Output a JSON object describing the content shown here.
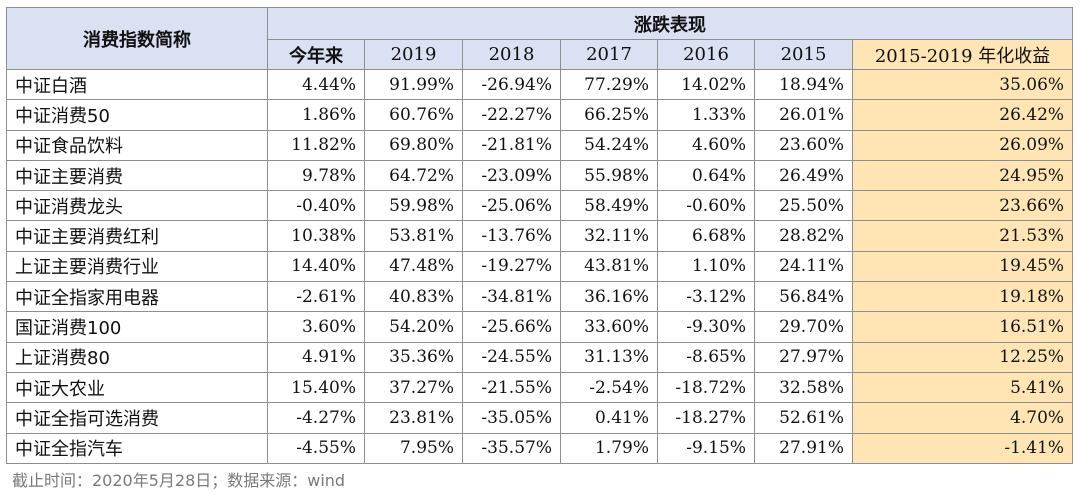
{
  "table": {
    "name_header": "消费指数简称",
    "group_header": "涨跌表现",
    "columns": [
      "今年来",
      "2019",
      "2018",
      "2017",
      "2016",
      "2015",
      "2015-2019 年化收益"
    ],
    "rows": [
      {
        "name": "中证白酒",
        "values": [
          "4.44%",
          "91.99%",
          "-26.94%",
          "77.29%",
          "14.02%",
          "18.94%",
          "35.06%"
        ]
      },
      {
        "name": "中证消费50",
        "values": [
          "1.86%",
          "60.76%",
          "-22.27%",
          "66.25%",
          "1.33%",
          "26.01%",
          "26.42%"
        ]
      },
      {
        "name": "中证食品饮料",
        "values": [
          "11.82%",
          "69.80%",
          "-21.81%",
          "54.24%",
          "4.60%",
          "23.60%",
          "26.09%"
        ]
      },
      {
        "name": "中证主要消费",
        "values": [
          "9.78%",
          "64.72%",
          "-23.09%",
          "55.98%",
          "0.64%",
          "26.49%",
          "24.95%"
        ]
      },
      {
        "name": "中证消费龙头",
        "values": [
          "-0.40%",
          "59.98%",
          "-25.06%",
          "58.49%",
          "-0.60%",
          "25.50%",
          "23.66%"
        ]
      },
      {
        "name": "中证主要消费红利",
        "values": [
          "10.38%",
          "53.81%",
          "-13.76%",
          "32.11%",
          "6.68%",
          "28.82%",
          "21.53%"
        ]
      },
      {
        "name": "上证主要消费行业",
        "values": [
          "14.40%",
          "47.48%",
          "-19.27%",
          "43.81%",
          "1.10%",
          "24.11%",
          "19.45%"
        ]
      },
      {
        "name": "中证全指家用电器",
        "values": [
          "-2.61%",
          "40.83%",
          "-34.81%",
          "36.16%",
          "-3.12%",
          "56.84%",
          "19.18%"
        ]
      },
      {
        "name": "国证消费100",
        "values": [
          "3.60%",
          "54.20%",
          "-25.66%",
          "33.60%",
          "-9.30%",
          "29.70%",
          "16.51%"
        ]
      },
      {
        "name": "上证消费80",
        "values": [
          "4.91%",
          "35.36%",
          "-24.55%",
          "31.13%",
          "-8.65%",
          "27.97%",
          "12.25%"
        ]
      },
      {
        "name": "中证大农业",
        "values": [
          "15.40%",
          "37.27%",
          "-21.55%",
          "-2.54%",
          "-18.72%",
          "32.58%",
          "5.41%"
        ]
      },
      {
        "name": "中证全指可选消费",
        "values": [
          "-4.27%",
          "23.81%",
          "-35.05%",
          "0.41%",
          "-18.27%",
          "52.61%",
          "4.70%"
        ]
      },
      {
        "name": "中证全指汽车",
        "values": [
          "-4.55%",
          "7.95%",
          "-35.57%",
          "1.79%",
          "-9.15%",
          "27.91%",
          "-1.41%"
        ]
      }
    ]
  },
  "footer": "截止时间：2020年5月28日；数据来源：wind",
  "colors": {
    "header_bg": "#d9e1f2",
    "annual_bg": "#ffe5b4",
    "grid_line": "#8e8e8e",
    "footer_text": "#7a7a7a"
  }
}
